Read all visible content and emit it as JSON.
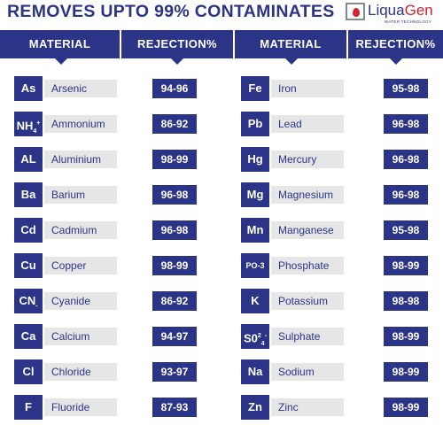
{
  "title": "REMOVES UPTO 99% CONTAMINATES",
  "brand": {
    "name_a": "Liqua",
    "name_b": "Gen",
    "tagline": "WATER TECHNOLOGY"
  },
  "headers": {
    "material": "MATERIAL",
    "rejection": "REJECTION%"
  },
  "colors": {
    "navy": "#2b3486",
    "red": "#d2232a",
    "grey": "#e6e6e6"
  },
  "left": [
    {
      "symbol": "As",
      "name": "Arsenic",
      "value": "94-96"
    },
    {
      "symbol": "NH4+",
      "name": "Ammonium",
      "value": "86-92"
    },
    {
      "symbol": "AL",
      "name": "Aluminium",
      "value": "98-99"
    },
    {
      "symbol": "Ba",
      "name": "Barium",
      "value": "96-98"
    },
    {
      "symbol": "Cd",
      "name": "Cadmium",
      "value": "96-98"
    },
    {
      "symbol": "Cu",
      "name": "Copper",
      "value": "98-99"
    },
    {
      "symbol": "CN-",
      "name": "Cyanide",
      "value": "86-92"
    },
    {
      "symbol": "Ca",
      "name": "Calcium",
      "value": "94-97"
    },
    {
      "symbol": "Cl",
      "name": "Chloride",
      "value": "93-97"
    },
    {
      "symbol": "F",
      "name": "Fluoride",
      "value": "87-93"
    }
  ],
  "right": [
    {
      "symbol": "Fe",
      "name": "Iron",
      "value": "95-98"
    },
    {
      "symbol": "Pb",
      "name": "Lead",
      "value": "96-98"
    },
    {
      "symbol": "Hg",
      "name": "Mercury",
      "value": "96-98"
    },
    {
      "symbol": "Mg",
      "name": "Magnesium",
      "value": "96-98"
    },
    {
      "symbol": "Mn",
      "name": "Manganese",
      "value": "95-98"
    },
    {
      "symbol": "PO-3",
      "name": "Phosphate",
      "value": "98-99"
    },
    {
      "symbol": "K",
      "name": "Potassium",
      "value": "98-98"
    },
    {
      "symbol": "SO42-",
      "name": "Sulphate",
      "value": "98-99"
    },
    {
      "symbol": "Na",
      "name": "Sodium",
      "value": "98-99"
    },
    {
      "symbol": "Zn",
      "name": "Zinc",
      "value": "98-99"
    }
  ]
}
